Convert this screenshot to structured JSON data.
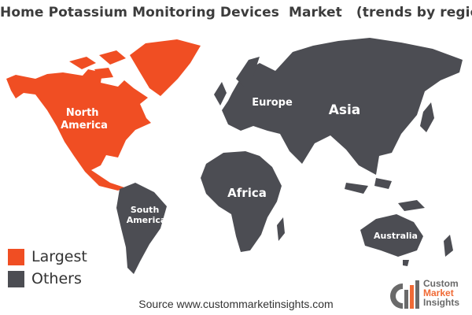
{
  "title": "Home Potassium Monitoring Devices  Market   (trends by region)",
  "colors": {
    "largest": "#f04e23",
    "others": "#4c4d53",
    "brand_gray": "#6a6a6a",
    "brand_orange": "#f06a35"
  },
  "regions": [
    {
      "name": "North America",
      "label_lines": [
        "North",
        "America"
      ],
      "status": "Largest"
    },
    {
      "name": "Europe",
      "label_lines": [
        "Europe"
      ],
      "status": "Others"
    },
    {
      "name": "Asia",
      "label_lines": [
        "Asia"
      ],
      "status": "Others"
    },
    {
      "name": "Africa",
      "label_lines": [
        "Africa"
      ],
      "status": "Others"
    },
    {
      "name": "South America",
      "label_lines": [
        "South",
        "America"
      ],
      "status": "Others"
    },
    {
      "name": "Australia",
      "label_lines": [
        "Australia"
      ],
      "status": "Others"
    }
  ],
  "legend": [
    {
      "label": "Largest",
      "color": "#f04e23"
    },
    {
      "label": "Others",
      "color": "#4c4d53"
    }
  ],
  "source": "Source www.custommarketinsights.com",
  "logo": {
    "monogram": "CMI",
    "lines": [
      "Custom",
      "Market",
      "Insights"
    ]
  }
}
